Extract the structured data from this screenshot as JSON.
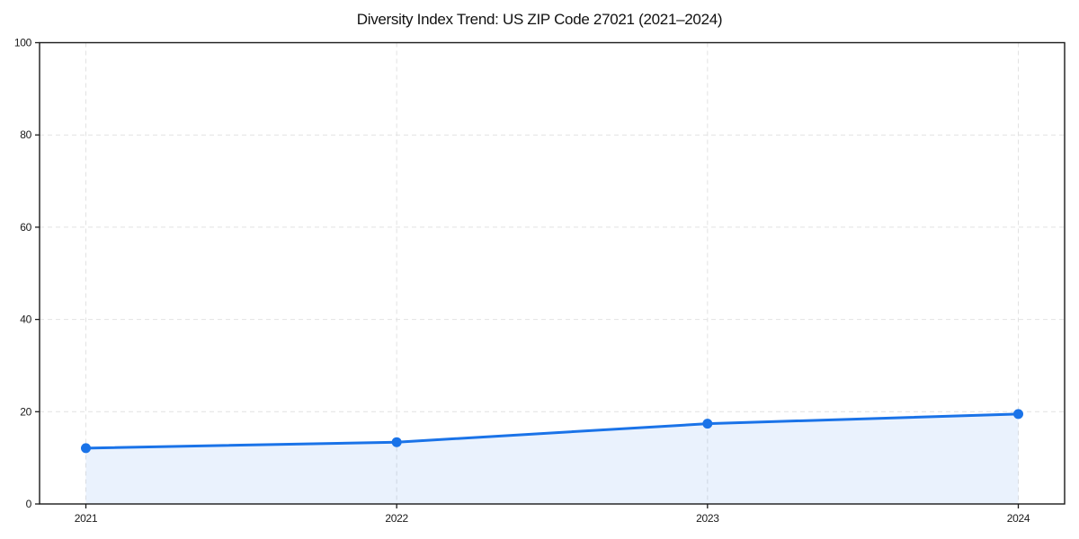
{
  "page": {
    "background_color": "#ffffff"
  },
  "chart_data": {
    "type": "line",
    "title": "Diversity Index Trend: US ZIP Code 27021 (2021–2024)",
    "categories": [
      "2021",
      "2022",
      "2023",
      "2024"
    ],
    "series": [
      {
        "name": "Diversity Index",
        "values": [
          12.1,
          13.4,
          17.4,
          19.5
        ]
      }
    ],
    "xlabel": "",
    "ylabel": "",
    "ylim": [
      0,
      100
    ],
    "yticks": [
      0,
      20,
      40,
      60,
      80,
      100
    ],
    "grid": "dashed, both axes",
    "legend": "none",
    "frame": "full box",
    "line_color": "#1a73e8",
    "marker_color": "#1a73e8",
    "fill_color": "#1a73e8",
    "fill_opacity": 0.09,
    "grid_color": "#e2e2e2",
    "spine_color": "#1a1a1a",
    "tick_label_color": "#1a1a1a"
  }
}
